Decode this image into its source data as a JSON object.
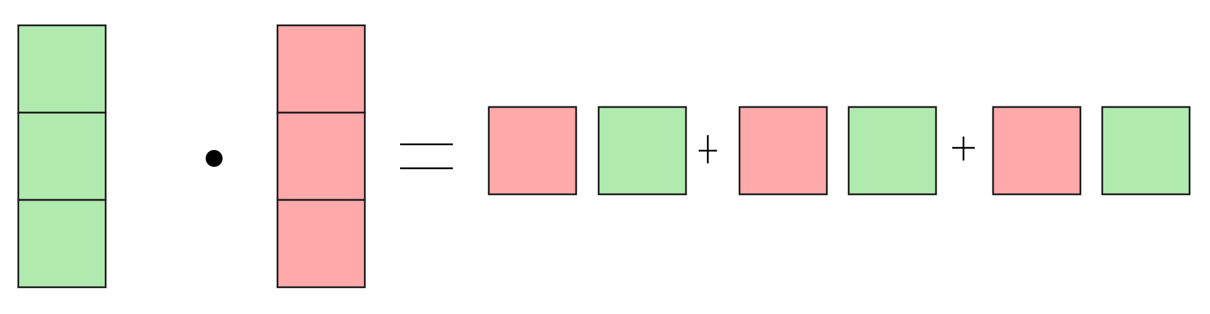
{
  "colors": {
    "green": "#b1eaaf",
    "pink": "#ffa9ab",
    "stroke": "#1a1a1a",
    "operator": "#000000"
  },
  "left_vector": {
    "color": "green",
    "cells": 3
  },
  "right_vector": {
    "color": "pink",
    "cells": 3
  },
  "operators": [
    "dot",
    "equals",
    "plus",
    "plus"
  ],
  "result_terms": [
    {
      "first": "pink",
      "second": "green"
    },
    {
      "first": "pink",
      "second": "green"
    },
    {
      "first": "pink",
      "second": "green"
    }
  ]
}
